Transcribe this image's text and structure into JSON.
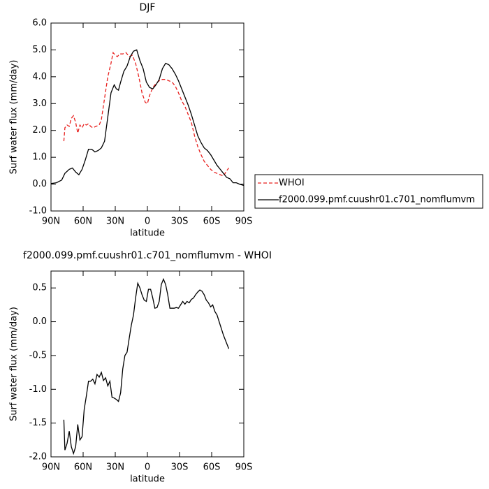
{
  "chart_data": [
    {
      "type": "line",
      "title": "DJF",
      "ylabel": "Surf water flux (mm/day)",
      "xlabel": "latitude",
      "xlim": [
        90,
        -90
      ],
      "xticks": [
        {
          "value": 90,
          "label": "90N"
        },
        {
          "value": 60,
          "label": "60N"
        },
        {
          "value": 30,
          "label": "30N"
        },
        0,
        {
          "value": -30,
          "label": "30S"
        },
        {
          "value": -60,
          "label": "60S"
        },
        {
          "value": -90,
          "label": "90S"
        }
      ],
      "ylim": [
        -1.0,
        6.0
      ],
      "yticks": [
        {
          "value": -1,
          "label": "-1.0"
        },
        {
          "value": 0,
          "label": "0.0"
        },
        {
          "value": 1,
          "label": "1.0"
        },
        {
          "value": 2,
          "label": "2.0"
        },
        {
          "value": 3,
          "label": "3.0"
        },
        {
          "value": 4,
          "label": "4.0"
        },
        {
          "value": 5,
          "label": "5.0"
        },
        {
          "value": 6,
          "label": "6.0"
        }
      ],
      "legend": "outside right",
      "series": [
        {
          "name": "WHOI",
          "color": "#e8201e",
          "dash": true,
          "x": [
            78,
            77,
            75,
            73,
            71,
            69,
            67,
            65,
            63,
            61,
            59,
            57,
            55,
            53,
            51,
            48,
            45,
            43,
            40,
            37,
            34,
            32,
            30,
            28,
            26,
            23,
            20,
            17,
            14,
            11,
            8,
            5,
            2,
            0,
            -2,
            -5,
            -8,
            -11,
            -14,
            -17,
            -20,
            -23,
            -26,
            -29,
            -32,
            -35,
            -38,
            -41,
            -44,
            -47,
            -50,
            -53,
            -56,
            -59,
            -62,
            -65,
            -68,
            -71,
            -74,
            -76
          ],
          "values": [
            1.6,
            2.1,
            2.2,
            2.15,
            2.45,
            2.55,
            2.3,
            1.9,
            2.2,
            2.1,
            2.25,
            2.2,
            2.25,
            2.15,
            2.1,
            2.15,
            2.2,
            2.4,
            3.2,
            4.0,
            4.5,
            4.9,
            4.8,
            4.75,
            4.85,
            4.85,
            4.9,
            4.75,
            4.8,
            4.5,
            4.0,
            3.4,
            3.05,
            3.0,
            3.3,
            3.6,
            3.75,
            3.85,
            3.9,
            3.9,
            3.85,
            3.8,
            3.65,
            3.4,
            3.1,
            2.9,
            2.6,
            2.3,
            1.8,
            1.4,
            1.1,
            0.85,
            0.7,
            0.55,
            0.45,
            0.4,
            0.35,
            0.3,
            0.5,
            0.6
          ]
        },
        {
          "name": "f2000.099.pmf.cuushr01.c701_nomflumvm",
          "color": "#000000",
          "dash": false,
          "x": [
            90,
            85,
            80,
            77,
            73,
            70,
            67,
            64,
            61,
            58,
            55,
            52,
            49,
            46,
            43,
            40,
            37,
            34,
            31,
            29,
            27,
            25,
            22,
            19,
            16,
            13,
            10,
            7,
            4,
            1,
            -2,
            -5,
            -8,
            -11,
            -14,
            -17,
            -20,
            -23,
            -26,
            -29,
            -32,
            -35,
            -38,
            -41,
            -44,
            -47,
            -50,
            -53,
            -56,
            -59,
            -62,
            -65,
            -68,
            -71,
            -74,
            -77,
            -80,
            -83,
            -86,
            -90
          ],
          "values": [
            0.02,
            0.05,
            0.15,
            0.4,
            0.55,
            0.6,
            0.45,
            0.35,
            0.55,
            0.9,
            1.3,
            1.3,
            1.2,
            1.25,
            1.35,
            1.6,
            2.5,
            3.4,
            3.7,
            3.55,
            3.5,
            3.8,
            4.2,
            4.4,
            4.75,
            4.95,
            5.0,
            4.6,
            4.3,
            3.8,
            3.6,
            3.55,
            3.7,
            3.9,
            4.3,
            4.5,
            4.45,
            4.3,
            4.1,
            3.85,
            3.55,
            3.25,
            2.95,
            2.6,
            2.2,
            1.8,
            1.55,
            1.35,
            1.25,
            1.1,
            0.9,
            0.7,
            0.55,
            0.4,
            0.25,
            0.2,
            0.05,
            0.05,
            0.0,
            -0.05
          ]
        }
      ]
    },
    {
      "type": "line",
      "title": "f2000.099.pmf.cuushr01.c701_nomflumvm - WHOI",
      "ylabel": "Surf water flux (mm/day)",
      "xlabel": "latitude",
      "xlim": [
        90,
        -90
      ],
      "xticks": [
        {
          "value": 90,
          "label": "90N"
        },
        {
          "value": 60,
          "label": "60N"
        },
        {
          "value": 30,
          "label": "30N"
        },
        0,
        {
          "value": -30,
          "label": "30S"
        },
        {
          "value": -60,
          "label": "60S"
        },
        {
          "value": -90,
          "label": "90S"
        }
      ],
      "ylim": [
        -2.0,
        0.75
      ],
      "yticks": [
        {
          "value": -2,
          "label": "-2.0"
        },
        -1.5,
        {
          "value": -1,
          "label": "-1.0"
        },
        -0.5,
        {
          "value": 0,
          "label": "0.0"
        },
        0.5
      ],
      "series": [
        {
          "color": "#000000",
          "dash": false,
          "x": [
            78,
            77,
            75,
            73,
            71,
            69,
            67,
            65,
            63,
            61,
            59,
            57,
            55,
            53,
            51,
            49,
            47,
            45,
            43,
            41,
            39,
            37,
            35,
            33,
            31,
            29,
            27,
            25,
            23,
            21,
            19,
            17,
            15,
            13,
            11,
            9,
            7,
            5,
            3,
            1,
            -1,
            -3,
            -5,
            -7,
            -9,
            -11,
            -13,
            -15,
            -17,
            -19,
            -21,
            -23,
            -25,
            -27,
            -29,
            -31,
            -33,
            -35,
            -37,
            -39,
            -41,
            -43,
            -45,
            -47,
            -49,
            -51,
            -53,
            -55,
            -57,
            -59,
            -61,
            -63,
            -65,
            -67,
            -69,
            -71,
            -76
          ],
          "values": [
            -1.45,
            -1.9,
            -1.8,
            -1.62,
            -1.85,
            -1.95,
            -1.85,
            -1.52,
            -1.75,
            -1.7,
            -1.3,
            -1.1,
            -0.88,
            -0.88,
            -0.85,
            -0.92,
            -0.78,
            -0.82,
            -0.75,
            -0.87,
            -0.83,
            -0.95,
            -0.88,
            -1.12,
            -1.13,
            -1.15,
            -1.18,
            -1.05,
            -0.7,
            -0.5,
            -0.45,
            -0.25,
            -0.05,
            0.1,
            0.35,
            0.57,
            0.5,
            0.4,
            0.32,
            0.3,
            0.48,
            0.48,
            0.35,
            0.2,
            0.21,
            0.3,
            0.55,
            0.63,
            0.55,
            0.4,
            0.2,
            0.2,
            0.2,
            0.21,
            0.2,
            0.25,
            0.3,
            0.26,
            0.3,
            0.28,
            0.33,
            0.35,
            0.4,
            0.44,
            0.47,
            0.45,
            0.4,
            0.32,
            0.28,
            0.22,
            0.25,
            0.15,
            0.1,
            0.0,
            -0.1,
            -0.2,
            -0.4
          ]
        }
      ]
    }
  ]
}
